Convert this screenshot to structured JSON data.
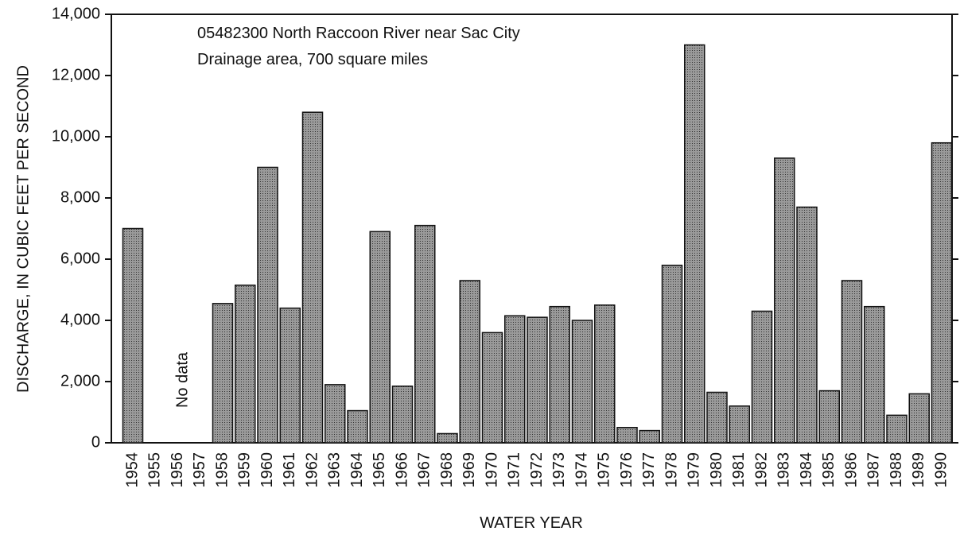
{
  "chart_data": {
    "type": "bar",
    "title": "05482300 North Raccoon River near Sac City",
    "subtitle": "Drainage area, 700 square miles",
    "annotation": "No data",
    "xlabel": "WATER YEAR",
    "ylabel": "DISCHARGE, IN CUBIC FEET PER SECOND",
    "categories": [
      "1954",
      "1955",
      "1956",
      "1957",
      "1958",
      "1959",
      "1960",
      "1961",
      "1962",
      "1963",
      "1964",
      "1965",
      "1966",
      "1967",
      "1968",
      "1969",
      "1970",
      "1971",
      "1972",
      "1973",
      "1974",
      "1975",
      "1976",
      "1977",
      "1978",
      "1979",
      "1980",
      "1981",
      "1982",
      "1983",
      "1984",
      "1985",
      "1986",
      "1987",
      "1988",
      "1989",
      "1990"
    ],
    "values": [
      7000,
      null,
      null,
      null,
      4550,
      5150,
      9000,
      4400,
      10800,
      1900,
      1050,
      6900,
      1850,
      7100,
      300,
      5300,
      3600,
      4150,
      4100,
      4450,
      4000,
      4500,
      500,
      400,
      5800,
      13000,
      1650,
      1200,
      4300,
      9300,
      7700,
      1700,
      5300,
      4450,
      900,
      1600,
      9800
    ],
    "color": "#8c8c8c",
    "ylim": [
      0,
      14000
    ],
    "yticks": [
      0,
      {
        "value": 2000,
        "label": "2,000"
      },
      {
        "value": 4000,
        "label": "4,000"
      },
      {
        "value": 6000,
        "label": "6,000"
      },
      {
        "value": 8000,
        "label": "8,000"
      },
      {
        "value": 10000,
        "label": "10,000"
      },
      {
        "value": 12000,
        "label": "12,000"
      },
      {
        "value": 14000,
        "label": "14,000"
      }
    ],
    "grid": false
  }
}
